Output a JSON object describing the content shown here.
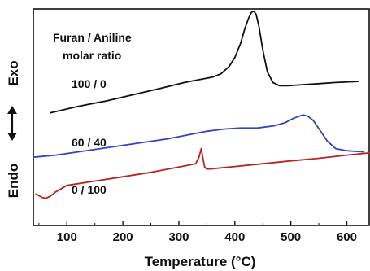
{
  "chart_data": {
    "type": "line",
    "title": "",
    "xlabel": "Temperature (°C)",
    "ylabel_exo": "Exo",
    "ylabel_endo": "Endo",
    "xlim": [
      40,
      640
    ],
    "ylim": [
      0,
      10
    ],
    "x_ticks": [
      100,
      200,
      300,
      400,
      500,
      600
    ],
    "y_ticks": [],
    "grid": false,
    "legend": "none",
    "annotations": [
      "Furan / Aniline",
      "molar ratio"
    ],
    "series": [
      {
        "name": "100 / 0",
        "color": "#111111",
        "x": [
          70,
          120,
          170,
          220,
          270,
          310,
          340,
          360,
          375,
          390,
          400,
          410,
          418,
          425,
          430,
          434,
          438,
          443,
          450,
          458,
          468,
          480,
          495,
          520,
          550,
          580,
          620
        ],
        "y": [
          5.2,
          5.5,
          5.75,
          6.05,
          6.35,
          6.6,
          6.75,
          6.85,
          7.0,
          7.35,
          7.75,
          8.4,
          9.1,
          9.6,
          9.85,
          9.9,
          9.75,
          9.2,
          8.1,
          7.1,
          6.6,
          6.45,
          6.45,
          6.5,
          6.55,
          6.6,
          6.65
        ]
      },
      {
        "name": "60 / 40",
        "color": "#3344bb",
        "x": [
          40,
          80,
          120,
          160,
          200,
          240,
          280,
          320,
          350,
          380,
          410,
          440,
          470,
          490,
          505,
          515,
          522,
          530,
          540,
          552,
          565,
          580,
          600,
          630
        ],
        "y": [
          3.15,
          3.25,
          3.4,
          3.55,
          3.7,
          3.85,
          4.0,
          4.2,
          4.35,
          4.45,
          4.5,
          4.5,
          4.6,
          4.75,
          4.95,
          5.05,
          5.1,
          5.05,
          4.85,
          4.4,
          3.9,
          3.55,
          3.45,
          3.4
        ]
      },
      {
        "name": "0 / 100",
        "color": "#bb2222",
        "x": [
          45,
          55,
          62,
          70,
          80,
          100,
          150,
          200,
          250,
          300,
          330,
          336,
          340,
          343,
          346,
          350,
          360,
          400,
          450,
          500,
          550,
          600,
          640
        ],
        "y": [
          1.45,
          1.3,
          1.25,
          1.35,
          1.55,
          1.85,
          2.05,
          2.25,
          2.45,
          2.7,
          2.85,
          3.15,
          3.55,
          3.1,
          2.7,
          2.6,
          2.62,
          2.72,
          2.85,
          2.98,
          3.1,
          3.25,
          3.35
        ]
      }
    ]
  }
}
